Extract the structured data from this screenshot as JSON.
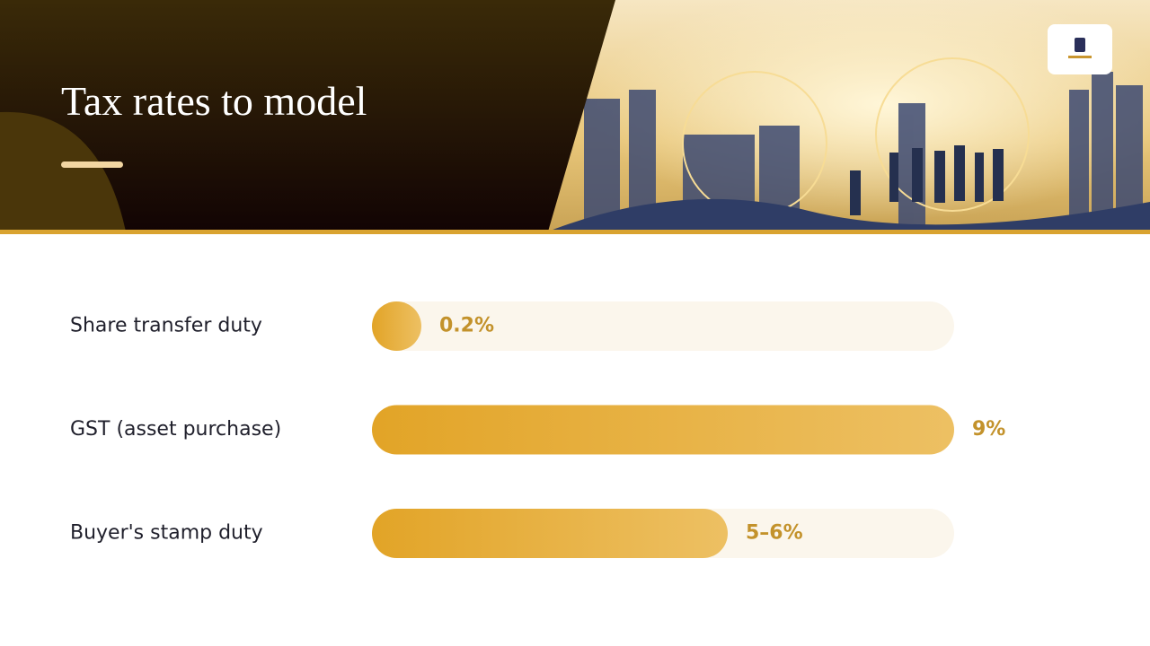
{
  "chart_data": {
    "type": "bar",
    "orientation": "horizontal",
    "title": "Tax rates to model",
    "categories": [
      "Share transfer duty",
      "GST (asset purchase)",
      "Buyer's stamp duty"
    ],
    "values": [
      0.2,
      9,
      5.5
    ],
    "value_labels": [
      "0.2%",
      "9%",
      "5–6%"
    ],
    "xlim": [
      0,
      9
    ],
    "color": "#e4a92f",
    "track_color": "#fbf6ec"
  }
}
